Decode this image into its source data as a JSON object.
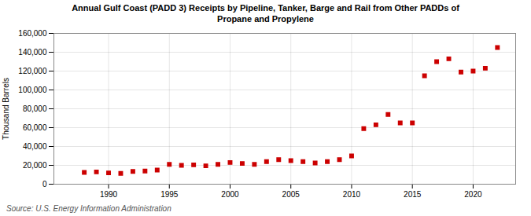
{
  "chart_data": {
    "type": "scatter",
    "title": "Annual Gulf Coast (PADD 3) Receipts by Pipeline, Tanker, Barge and Rail from Other PADDs of\nPropane and Propylene",
    "ylabel": "Thousand Barrels",
    "source": "Source: U.S. Energy Information Administration",
    "x": [
      1988,
      1989,
      1990,
      1991,
      1992,
      1993,
      1994,
      1995,
      1996,
      1997,
      1998,
      1999,
      2000,
      2001,
      2002,
      2003,
      2004,
      2005,
      2006,
      2007,
      2008,
      2009,
      2010,
      2011,
      2012,
      2013,
      2014,
      2015,
      2016,
      2017,
      2018,
      2019,
      2020,
      2021,
      2022
    ],
    "values": [
      12500,
      13000,
      12000,
      11500,
      13500,
      14000,
      15000,
      21000,
      20000,
      20500,
      19500,
      21000,
      23000,
      22000,
      21000,
      24000,
      26000,
      25000,
      24000,
      22500,
      24000,
      26000,
      30000,
      59000,
      63000,
      74000,
      65000,
      65000,
      115000,
      130000,
      133000,
      119000,
      120000,
      123000,
      145000
    ],
    "color": "#cc0000",
    "marker": "square",
    "xlim": [
      1985.5,
      2023.5
    ],
    "xticks": [
      1990,
      1995,
      2000,
      2005,
      2010,
      2015,
      2020
    ],
    "ylim": [
      0,
      160000
    ],
    "yticks": [
      0,
      {
        "value": 20000,
        "label": "20,000"
      },
      {
        "value": 40000,
        "label": "40,000"
      },
      {
        "value": 60000,
        "label": "60,000"
      },
      {
        "value": 80000,
        "label": "80,000"
      },
      {
        "value": 100000,
        "label": "100,000"
      },
      {
        "value": 120000,
        "label": "120,000"
      },
      {
        "value": 140000,
        "label": "140,000"
      },
      {
        "value": 160000,
        "label": "160,000"
      }
    ],
    "grid": true
  }
}
